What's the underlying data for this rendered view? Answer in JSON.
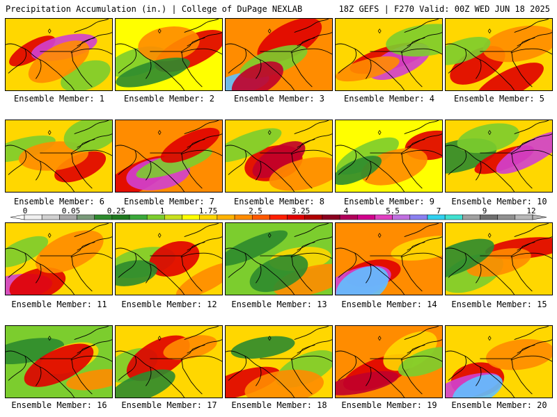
{
  "header": {
    "left": "Precipitation Accumulation (in.) | College of DuPage NEXLAB",
    "right": "18Z GEFS | F270 Valid: 00Z WED JUN 18 2025"
  },
  "panels": [
    {
      "label": "Ensemble Member: 1"
    },
    {
      "label": "Ensemble Member: 2"
    },
    {
      "label": "Ensemble Member: 3"
    },
    {
      "label": "Ensemble Member: 4"
    },
    {
      "label": "Ensemble Member: 5"
    },
    {
      "label": "Ensemble Member: 6"
    },
    {
      "label": "Ensemble Member: 7"
    },
    {
      "label": "Ensemble Member: 8"
    },
    {
      "label": "Ensemble Member: 9"
    },
    {
      "label": "Ensemble Member: 10"
    },
    {
      "label": "Ensemble Member: 11"
    },
    {
      "label": "Ensemble Member: 12"
    },
    {
      "label": "Ensemble Member: 13"
    },
    {
      "label": "Ensemble Member: 14"
    },
    {
      "label": "Ensemble Member: 15"
    },
    {
      "label": "Ensemble Member: 16"
    },
    {
      "label": "Ensemble Member: 17"
    },
    {
      "label": "Ensemble Member: 18"
    },
    {
      "label": "Ensemble Member: 19"
    },
    {
      "label": "Ensemble Member: 20"
    }
  ],
  "colorbar": {
    "ticks": [
      "0",
      "0.05",
      "0.25",
      "1",
      "1.75",
      "2.5",
      "3.25",
      "4",
      "5.5",
      "7",
      "9",
      "12"
    ],
    "colors": [
      "#f0f0f0",
      "#d0d0d0",
      "#a8a8a8",
      "#7a9a7a",
      "#2e8b2e",
      "#1f7a1f",
      "#3aa83a",
      "#7ccd2e",
      "#c8e01e",
      "#ffff00",
      "#ffd700",
      "#ffb300",
      "#ff8c00",
      "#ff5a00",
      "#ff2000",
      "#e00000",
      "#b00000",
      "#8b0020",
      "#b0005a",
      "#d0008c",
      "#e040c0",
      "#c070e0",
      "#8a80f0",
      "#30d0f0",
      "#40e0d0",
      "#a0a0a0",
      "#707070",
      "#909090",
      "#b8b8b8"
    ]
  },
  "palette": {
    "dry": "#ffff00",
    "light": "#ffd700",
    "moderate": "#ff8c00",
    "heavy": "#e00000",
    "very_heavy": "#c0002a",
    "extreme": "#d040d0",
    "green_light": "#7ccd2e",
    "green_dark": "#2e8b2e",
    "cyan": "#60c0ff"
  }
}
